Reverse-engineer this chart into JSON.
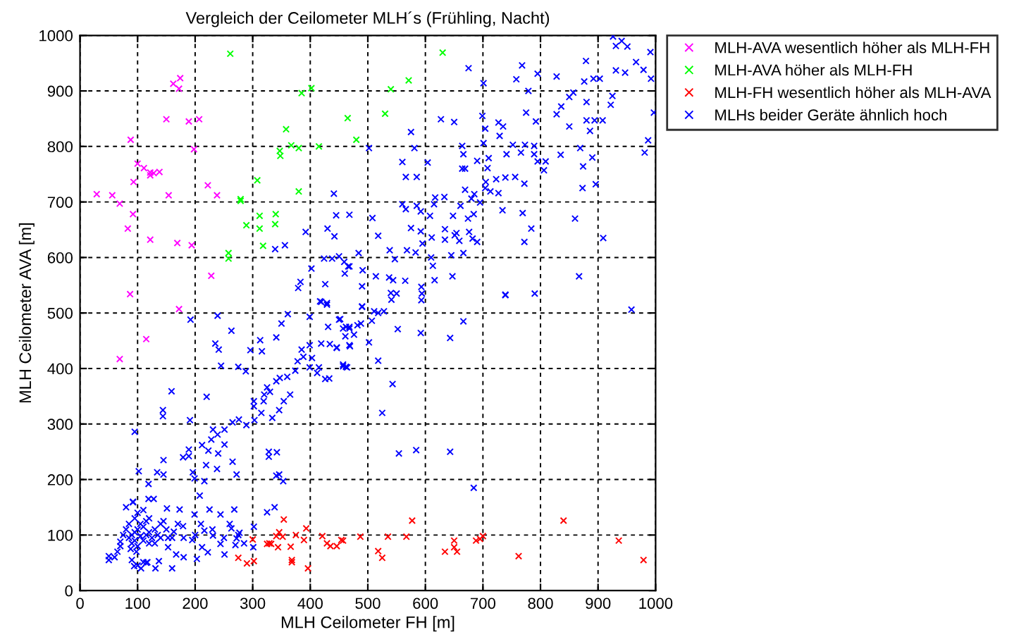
{
  "chart_data": {
    "type": "scatter",
    "title": "Vergleich der Ceilometer MLH´s (Frühling, Nacht)",
    "xlabel": "MLH Ceilometer FH [m]",
    "ylabel": "MLH Ceilometer AVA [m]",
    "xlim": [
      0,
      1000
    ],
    "ylim": [
      0,
      1000
    ],
    "xticks": [
      0,
      100,
      200,
      300,
      400,
      500,
      600,
      700,
      800,
      900,
      1000
    ],
    "yticks": [
      0,
      100,
      200,
      300,
      400,
      500,
      600,
      700,
      800,
      900,
      1000
    ],
    "grid": true,
    "legend": "top right",
    "marker": "cross",
    "series": [
      {
        "name": "MLH-AVA wesentlich höher als MLH-FH",
        "color": "#ff00ff",
        "x": [
          29,
          56,
          69,
          88,
          93,
          100,
          111,
          122,
          122,
          128,
          138,
          92,
          83,
          122,
          87,
          150,
          154,
          162,
          172,
          174,
          169,
          189,
          207,
          198,
          194,
          222,
          238,
          228,
          172,
          115,
          69
        ],
        "values": [
          714,
          712,
          697,
          812,
          736,
          769,
          761,
          753,
          748,
          752,
          754,
          678,
          652,
          632,
          534,
          849,
          712,
          913,
          904,
          923,
          626,
          845,
          849,
          795,
          622,
          730,
          712,
          567,
          507,
          453,
          417
        ]
      },
      {
        "name": "MLH-AVA höher als MLH-FH",
        "color": "#00ff00",
        "x": [
          261,
          402,
          385,
          465,
          358,
          367,
          380,
          415,
          347,
          348,
          308,
          380,
          279,
          279,
          289,
          312,
          312,
          340,
          339,
          318,
          258,
          258,
          630,
          571,
          540,
          530,
          480
        ],
        "values": [
          967,
          905,
          896,
          851,
          831,
          802,
          797,
          800,
          792,
          783,
          739,
          719,
          705,
          702,
          658,
          675,
          652,
          678,
          660,
          621,
          608,
          598,
          969,
          919,
          903,
          859,
          812
        ]
      },
      {
        "name": "MLH-FH wesentlich höher als MLH-AVA",
        "color": "#ff0000",
        "x": [
          446,
          457,
          487,
          518,
          525,
          535,
          567,
          577,
          634,
          650,
          650,
          655,
          688,
          695,
          700,
          762,
          840,
          936,
          979,
          275,
          290,
          302,
          300,
          325,
          329,
          341,
          346,
          352,
          354,
          332,
          344,
          366,
          368,
          368,
          375,
          389,
          393,
          396,
          421,
          429,
          435,
          454
        ],
        "values": [
          80,
          90,
          97,
          71,
          59,
          97,
          97,
          126,
          70,
          90,
          78,
          70,
          90,
          93,
          98,
          62,
          126,
          90,
          55,
          59,
          49,
          53,
          92,
          84,
          85,
          98,
          105,
          97,
          128,
          84,
          78,
          79,
          55,
          51,
          100,
          91,
          112,
          40,
          98,
          85,
          80,
          91
        ]
      },
      {
        "name": "MLHs beider Geräte ähnlich hoch",
        "color": "#0000ff",
        "x": [
          926,
          941,
          951,
          931,
          991,
          966,
          979,
          931,
          947,
          992,
          675,
          768,
          795,
          828,
          879,
          876,
          892,
          903,
          701,
          758,
          779,
          850,
          857,
          836,
          828,
          925,
          922,
          880,
          880,
          894,
          908,
          850,
          886,
          997,
          987,
          981,
          775,
          792,
          699,
          704,
          727,
          735,
          729,
          701,
          752,
          773,
          789,
          766,
          664,
          666,
          690,
          710,
          741,
          789,
          795,
          809,
          806,
          835,
          869,
          890,
          874,
          896,
          873,
          627,
          650,
          575,
          581,
          502,
          560,
          604,
          664,
          669,
          566,
          585,
          708,
          705,
          723,
          739,
          756,
          772,
          704,
          713,
          727,
          669,
          685,
          680,
          695,
          661,
          633,
          617,
          615,
          585,
          560,
          566,
          468,
          508,
          592,
          608,
          648,
          674,
          684,
          734,
          769,
          860,
          784,
          575,
          592,
          634,
          654,
          676,
          651,
          518,
          611,
          634,
          659,
          682,
          690,
          772,
          909,
          484,
          459,
          466,
          538,
          547,
          568,
          583,
          610,
          595,
          645,
          666,
          613,
          491,
          490,
          514,
          537,
          544,
          565,
          593,
          616,
          647,
          867,
          540,
          550,
          594,
          739,
          790,
          490,
          392,
          402,
          426,
          441,
          445,
          430,
          442,
          424,
          438,
          450,
          460,
          468,
          379,
          383,
          419,
          429,
          356,
          339,
          95,
          102,
          92,
          119,
          119,
          128,
          134,
          145,
          145,
          144,
          144,
          159,
          191,
          189,
          189,
          179,
          196,
          216,
          220,
          239,
          192,
          235,
          241,
          263,
          245,
          275,
          288,
          296,
          313,
          316,
          341,
          350,
          361,
          399,
          417,
          429,
          399,
          419,
          431,
          462,
          468,
          450,
          434,
          446,
          469,
          385,
          378,
          388,
          403,
          399,
          412,
          426,
          415,
          457,
          462,
          433,
          374,
          360,
          365,
          347,
          341,
          330,
          325,
          320,
          302,
          319,
          354,
          346,
          334,
          315,
          302,
          303,
          289,
          276,
          265,
          251,
          239,
          231,
          228,
          212,
          223,
          240,
          251,
          265,
          272,
          238,
          219,
          199,
          208,
          225,
          244,
          268,
          263,
          277,
          270,
          251,
          231,
          216,
          199,
          179,
          173,
          145,
          151,
          153,
          163,
          195,
          212,
          203,
          222,
          244,
          272,
          301,
          302,
          325,
          338,
          341,
          342,
          328,
          328,
          346,
          353,
          153,
          167,
          131,
          137,
          106,
          110,
          117,
          94,
          85,
          90,
          95,
          100,
          105,
          110,
          115,
          120,
          125,
          90,
          95,
          100,
          110,
          105,
          115,
          120,
          130,
          135,
          140,
          80,
          75,
          85,
          95,
          100,
          110,
          88,
          98,
          130,
          140,
          150,
          70,
          65,
          60,
          90,
          100,
          115,
          50,
          50,
          80,
          92,
          70,
          120,
          160,
          170,
          180,
          200,
          210,
          230,
          250,
          260,
          275,
          285,
          180,
          160,
          452,
          457,
          468,
          461,
          476,
          482,
          488,
          507,
          511,
          528,
          518,
          490,
          446,
          468,
          457,
          464,
          502,
          518,
          552,
          592,
          543,
          643,
          666,
          593,
          541,
          739,
          958,
          525,
          554,
          584,
          643,
          684
        ],
        "values": [
          998,
          990,
          980,
          981,
          970,
          952,
          938,
          937,
          933,
          922,
          941,
          946,
          931,
          926,
          954,
          917,
          922,
          922,
          914,
          921,
          900,
          889,
          897,
          872,
          858,
          891,
          875,
          880,
          847,
          847,
          847,
          836,
          828,
          861,
          811,
          789,
          861,
          845,
          855,
          832,
          843,
          836,
          819,
          806,
          803,
          803,
          801,
          789,
          801,
          786,
          774,
          779,
          786,
          786,
          773,
          773,
          757,
          785,
          797,
          780,
          764,
          732,
          725,
          849,
          844,
          826,
          797,
          797,
          772,
          771,
          760,
          760,
          745,
          745,
          761,
          736,
          741,
          744,
          745,
          733,
          725,
          719,
          716,
          722,
          714,
          706,
          699,
          693,
          709,
          708,
          696,
          693,
          696,
          687,
          677,
          671,
          683,
          675,
          675,
          670,
          678,
          685,
          680,
          670,
          652,
          653,
          647,
          651,
          644,
          646,
          640,
          639,
          636,
          632,
          630,
          634,
          628,
          628,
          635,
          608,
          592,
          584,
          613,
          597,
          613,
          609,
          600,
          625,
          604,
          608,
          585,
          577,
          548,
          566,
          564,
          559,
          558,
          547,
          559,
          566,
          566,
          536,
          535,
          535,
          532,
          535,
          511,
          646,
          580,
          552,
          715,
          676,
          652,
          638,
          598,
          598,
          602,
          571,
          584,
          545,
          556,
          520,
          515,
          622,
          615,
          286,
          215,
          159,
          192,
          165,
          165,
          213,
          209,
          235,
          325,
          314,
          359,
          307,
          254,
          242,
          240,
          213,
          197,
          349,
          495,
          488,
          445,
          434,
          468,
          405,
          403,
          395,
          433,
          451,
          431,
          456,
          481,
          498,
          493,
          521,
          518,
          442,
          445,
          475,
          475,
          472,
          488,
          444,
          437,
          440,
          434,
          413,
          421,
          419,
          402,
          392,
          381,
          402,
          407,
          403,
          382,
          396,
          385,
          353,
          383,
          377,
          358,
          366,
          353,
          341,
          341,
          341,
          325,
          311,
          320,
          332,
          307,
          298,
          308,
          303,
          290,
          281,
          290,
          272,
          262,
          252,
          247,
          263,
          232,
          209,
          219,
          226,
          202,
          171,
          146,
          137,
          146,
          112,
          104,
          82,
          65,
          99,
          108,
          137,
          116,
          146,
          125,
          148,
          95,
          106,
          91,
          78,
          57,
          69,
          84,
          94,
          78,
          115,
          141,
          150,
          207,
          249,
          241,
          250,
          209,
          197,
          78,
          65,
          40,
          53,
          40,
          51,
          51,
          44,
          95,
          100,
          105,
          110,
          98,
          115,
          100,
          105,
          95,
          85,
          90,
          80,
          90,
          120,
          125,
          130,
          110,
          100,
          95,
          110,
          100,
          120,
          130,
          140,
          145,
          75,
          70,
          85,
          120,
          110,
          80,
          70,
          60,
          55,
          45,
          50,
          55,
          62,
          150,
          160,
          88,
          85,
          95,
          120,
          95,
          100,
          120,
          110,
          95,
          120,
          100,
          85,
          60,
          40,
          489,
          472,
          475,
          458,
          461,
          478,
          481,
          486,
          503,
          503,
          500,
          512,
          438,
          442,
          404,
          402,
          447,
          414,
          471,
          464,
          372,
          455,
          485,
          523,
          524,
          533,
          506,
          320,
          247,
          253,
          250,
          185
        ]
      }
    ]
  }
}
